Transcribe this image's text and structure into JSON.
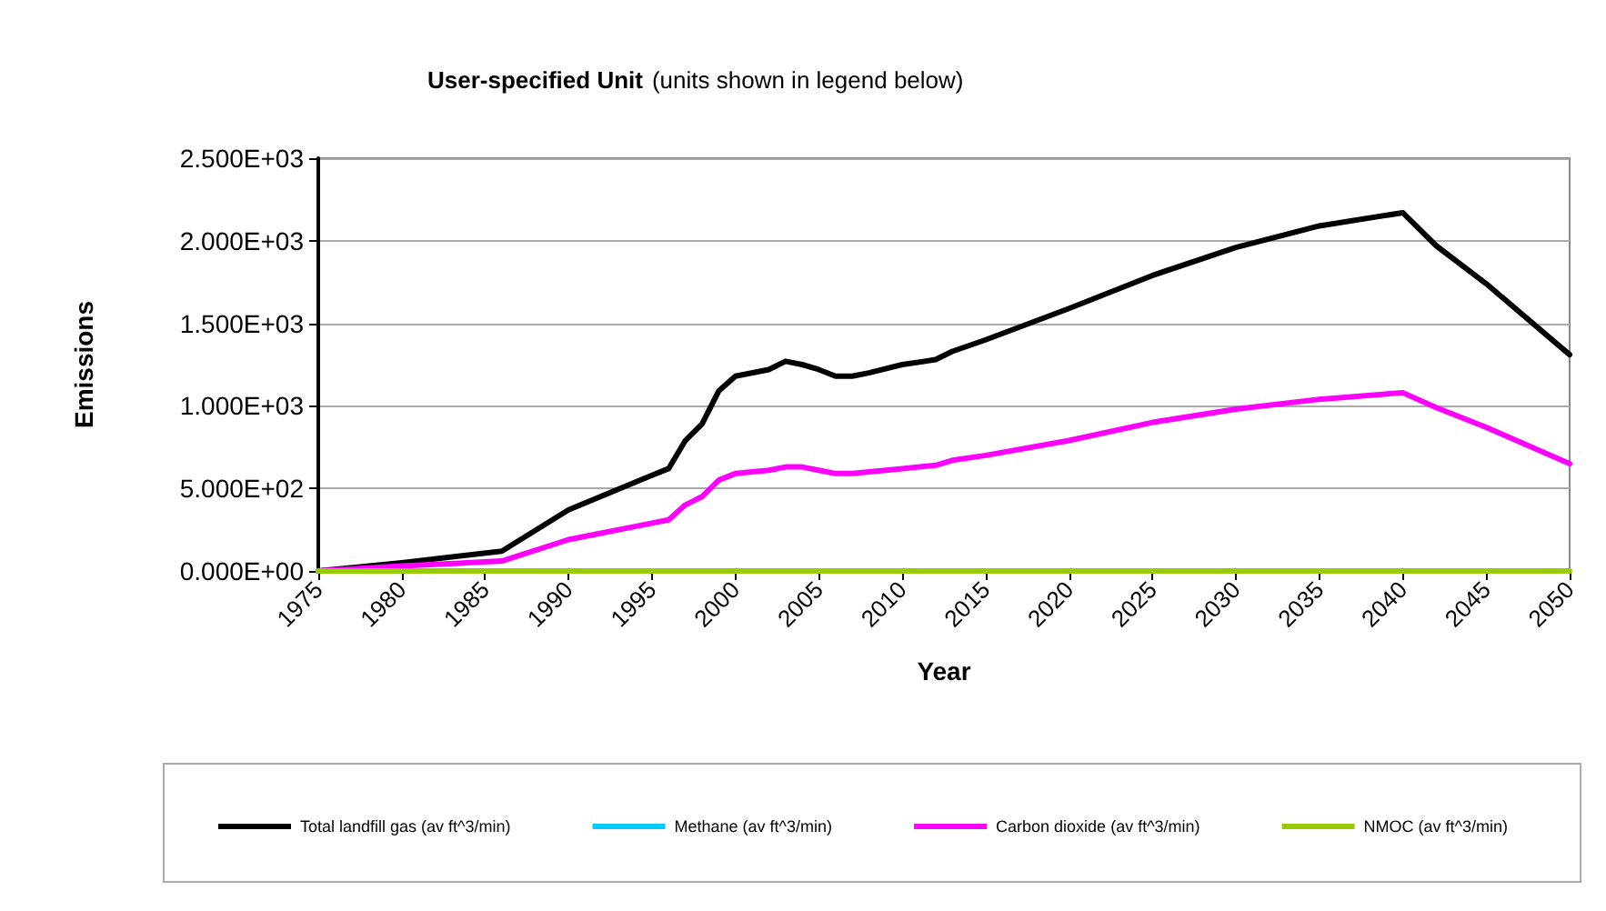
{
  "chart_data": {
    "type": "line",
    "title": "User-specified Unit",
    "subtitle": "(units shown in legend below)",
    "xlabel": "Year",
    "ylabel": "Emissions",
    "xlim": [
      1975,
      2050
    ],
    "xticks": [
      1975,
      1980,
      1985,
      1990,
      1995,
      2000,
      2005,
      2010,
      2015,
      2020,
      2025,
      2030,
      2035,
      2040,
      2045,
      2050
    ],
    "ylim": [
      0,
      2500
    ],
    "yticks": [
      {
        "value": 0,
        "label": "0.000E+00"
      },
      {
        "value": 500,
        "label": "5.000E+02"
      },
      {
        "value": 1000,
        "label": "1.000E+03"
      },
      {
        "value": 1500,
        "label": "1.500E+03"
      },
      {
        "value": 2000,
        "label": "2.000E+03"
      },
      {
        "value": 2500,
        "label": "2.500E+03"
      }
    ],
    "grid": "y",
    "legend": "bottom",
    "marker": "none",
    "line_style": "solid",
    "series": [
      {
        "name": "Total landfill gas (av ft^3/min)",
        "color": "#000000",
        "x": [
          1975,
          1980,
          1986,
          1990,
          1995,
          1996,
          1997,
          1998,
          1999,
          2000,
          2002,
          2003,
          2004,
          2005,
          2006,
          2007,
          2008,
          2010,
          2012,
          2013,
          2015,
          2020,
          2025,
          2030,
          2035,
          2040,
          2042,
          2045,
          2050
        ],
        "values": [
          0,
          50,
          120,
          370,
          580,
          620,
          790,
          890,
          1090,
          1180,
          1220,
          1270,
          1250,
          1220,
          1180,
          1180,
          1200,
          1250,
          1280,
          1330,
          1400,
          1590,
          1790,
          1960,
          2090,
          2170,
          1970,
          1740,
          1310
        ]
      },
      {
        "name": "Methane (av ft^3/min)",
        "color": "#00ccff"
      },
      {
        "name": "Carbon dioxide (av ft^3/min)",
        "color": "#ff00ff",
        "x": [
          1975,
          1980,
          1986,
          1990,
          1995,
          1996,
          1997,
          1998,
          1999,
          2000,
          2002,
          2003,
          2004,
          2005,
          2006,
          2007,
          2008,
          2010,
          2012,
          2013,
          2015,
          2020,
          2025,
          2030,
          2035,
          2040,
          2042,
          2045,
          2050
        ],
        "values": [
          0,
          30,
          60,
          190,
          290,
          310,
          400,
          450,
          550,
          590,
          610,
          630,
          630,
          610,
          590,
          590,
          600,
          620,
          640,
          670,
          700,
          790,
          900,
          980,
          1040,
          1080,
          990,
          870,
          650
        ]
      },
      {
        "name": "NMOC (av ft^3/min)",
        "color": "#99cc00",
        "x": [
          1975,
          2050
        ],
        "values": [
          0,
          0
        ]
      }
    ]
  }
}
